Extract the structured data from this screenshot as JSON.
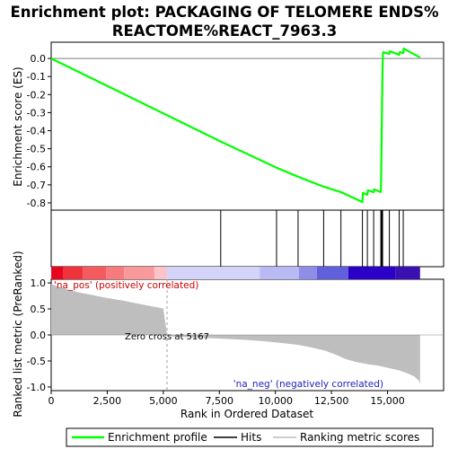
{
  "chart_data": {
    "type": "line",
    "title": "Enrichment plot: PACKAGING OF TELOMERE ENDS%\nREACTOME%REACT_7963.3",
    "xlabel": "Rank in Ordered Dataset",
    "xlim": [
      0,
      17500
    ],
    "xticks": [
      0,
      2500,
      5000,
      7500,
      10000,
      12500,
      15000
    ],
    "top_panel": {
      "ylabel": "Enrichment score (ES)",
      "ylim": [
        -0.84,
        0.09
      ],
      "yticks": [
        0.0,
        -0.1,
        -0.2,
        -0.3,
        -0.4,
        -0.5,
        -0.6,
        -0.7,
        -0.8
      ],
      "grid": false,
      "series": [
        {
          "name": "Enrichment profile",
          "color": "#00ff00",
          "x": [
            0,
            7560,
            10050,
            11010,
            12150,
            12920,
            13880,
            13900,
            14100,
            14120,
            14380,
            14400,
            14700,
            14710,
            14720,
            14730,
            14740,
            14750,
            14760,
            14770,
            14780,
            14790,
            14800,
            15080,
            15100,
            15520,
            15540,
            15700,
            15720,
            16450
          ],
          "y": [
            0.0,
            -0.46,
            -0.605,
            -0.655,
            -0.71,
            -0.74,
            -0.795,
            -0.745,
            -0.755,
            -0.73,
            -0.74,
            -0.725,
            -0.74,
            -0.7,
            -0.6,
            -0.5,
            -0.4,
            -0.3,
            -0.2,
            -0.1,
            -0.05,
            0.0,
            0.035,
            0.025,
            0.04,
            0.02,
            0.035,
            0.03,
            0.055,
            0.005
          ]
        }
      ]
    },
    "hits": {
      "name": "Hits",
      "x": [
        7560,
        10050,
        11010,
        12150,
        12920,
        13880,
        14100,
        14380,
        14700,
        14720,
        14740,
        14760,
        14780,
        15080,
        15520,
        15700
      ]
    },
    "color_bar": {
      "segments": [
        {
          "from": 0,
          "to": 550,
          "color": "#e8061c"
        },
        {
          "from": 550,
          "to": 1400,
          "color": "#f0323a"
        },
        {
          "from": 1400,
          "to": 2450,
          "color": "#f55a5e"
        },
        {
          "from": 2450,
          "to": 3250,
          "color": "#f77a7c"
        },
        {
          "from": 3250,
          "to": 4600,
          "color": "#f9999b"
        },
        {
          "from": 4600,
          "to": 5167,
          "color": "#fbc4c8"
        },
        {
          "from": 5167,
          "to": 9300,
          "color": "#d4d4fa"
        },
        {
          "from": 9300,
          "to": 11050,
          "color": "#b9b9f3"
        },
        {
          "from": 11050,
          "to": 11850,
          "color": "#8e8ee8"
        },
        {
          "from": 11850,
          "to": 13250,
          "color": "#6060dc"
        },
        {
          "from": 13250,
          "to": 15350,
          "color": "#2a00c8"
        },
        {
          "from": 15350,
          "to": 16450,
          "color": "#3a10b0"
        }
      ]
    },
    "bottom_panel": {
      "ylabel": "Ranked list metric (PreRanked)",
      "ylim": [
        -1.07,
        1.07
      ],
      "yticks": [
        1.0,
        0.5,
        0.0,
        -0.5,
        -1.0
      ],
      "series": [
        {
          "name": "Ranking metric scores",
          "color": "#bebebe",
          "x": [
            0,
            300,
            700,
            1200,
            1800,
            2500,
            3200,
            3900,
            4500,
            5000,
            5167,
            5400,
            7000,
            8500,
            9500,
            10200,
            11000,
            11600,
            12200,
            12700,
            13100,
            13600,
            14100,
            14600,
            15100,
            15500,
            15900,
            16200,
            16400,
            16450
          ],
          "y": [
            0.98,
            0.93,
            0.88,
            0.82,
            0.77,
            0.71,
            0.66,
            0.6,
            0.55,
            0.51,
            0.0,
            -0.03,
            -0.06,
            -0.09,
            -0.12,
            -0.15,
            -0.19,
            -0.24,
            -0.3,
            -0.38,
            -0.46,
            -0.52,
            -0.56,
            -0.59,
            -0.64,
            -0.68,
            -0.74,
            -0.8,
            -0.88,
            -0.95
          ]
        }
      ],
      "zero_cross_rank": 5167,
      "zero_cross_label": "Zero cross at 5167",
      "pos_label": "'na_pos' (positively correlated)",
      "neg_label": "'na_neg' (negatively correlated)"
    },
    "legend": {
      "placement": "bottom",
      "entries": [
        {
          "label": "Enrichment profile",
          "color": "#00ff00"
        },
        {
          "label": "Hits",
          "color": "#000000"
        },
        {
          "label": "Ranking metric scores",
          "color": "#bebebe"
        }
      ]
    }
  }
}
